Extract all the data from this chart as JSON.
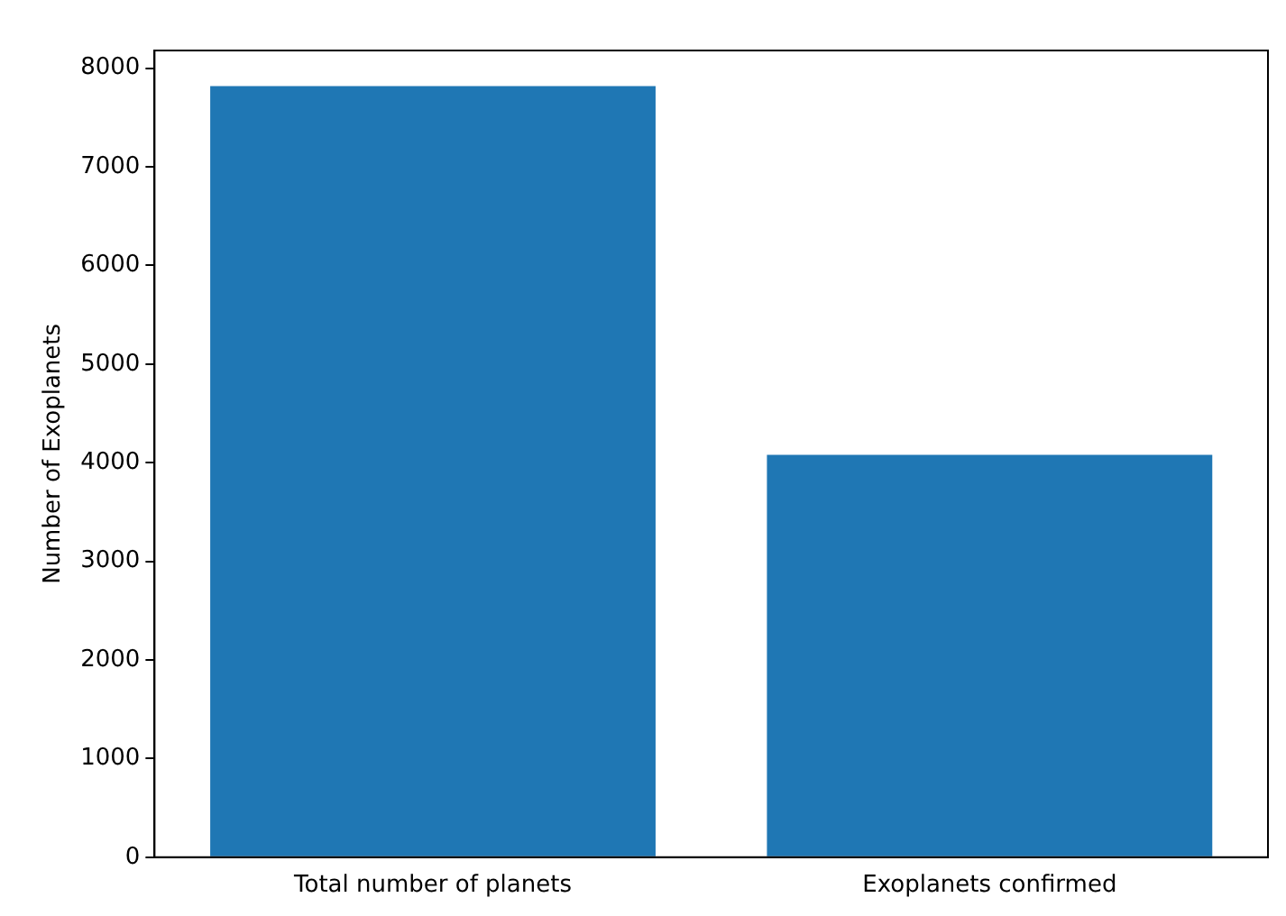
{
  "chart_data": {
    "type": "bar",
    "ylabel": "Number of Exoplanets",
    "categories": [
      "Total number of planets",
      "Exoplanets confirmed"
    ],
    "values": [
      7820,
      4080
    ],
    "color": "#1f77b4",
    "ylim": [
      0,
      8180
    ],
    "yticks": [
      0,
      1000,
      2000,
      3000,
      4000,
      5000,
      6000,
      7000,
      8000
    ],
    "grid": false,
    "legend": false
  }
}
